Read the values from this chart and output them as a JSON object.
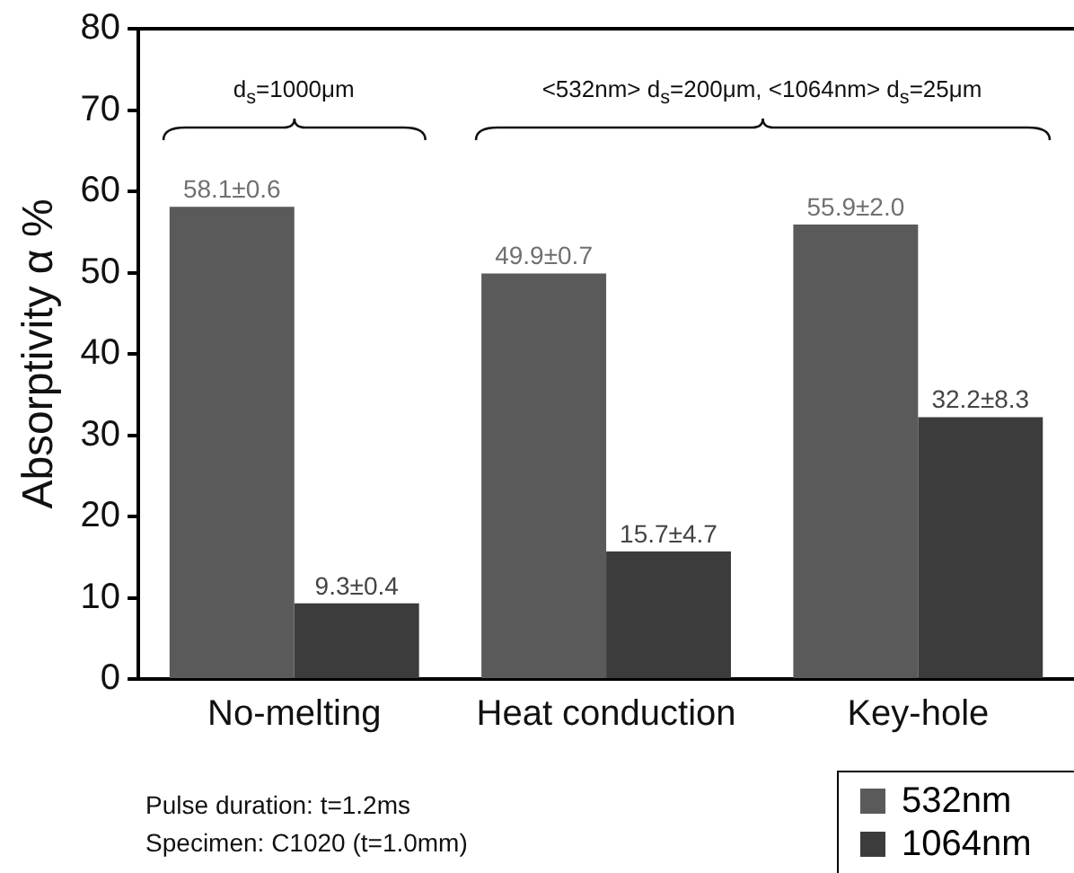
{
  "chart_data": {
    "type": "bar",
    "ylabel": "Absorptivity α %",
    "categories": [
      "No-melting",
      "Heat conduction",
      "Key-hole"
    ],
    "series": [
      {
        "name": "532nm",
        "color": "#5a5a5a",
        "values": [
          58.1,
          49.9,
          55.9
        ],
        "value_labels": [
          "58.1±0.6",
          "49.9±0.7",
          "55.9±2.0"
        ]
      },
      {
        "name": "1064nm",
        "color": "#3c3c3c",
        "values": [
          9.3,
          15.7,
          32.2
        ],
        "value_labels": [
          "9.3±0.4",
          "15.7±4.7",
          "32.2±8.3"
        ]
      }
    ],
    "ylim": [
      0,
      80
    ],
    "yticks": [
      0,
      10,
      20,
      30,
      40,
      50,
      60,
      70,
      80
    ],
    "grid": false,
    "legend": "bottom right",
    "annotations": [
      "d$_{s}$=1000μm",
      "<532nm> d$_{s}$=200μm, <1064nm> d$_{s}$=25μm",
      "Pulse duration: t=1.2ms",
      "Specimen: C1020 (t=1.0mm)"
    ]
  }
}
